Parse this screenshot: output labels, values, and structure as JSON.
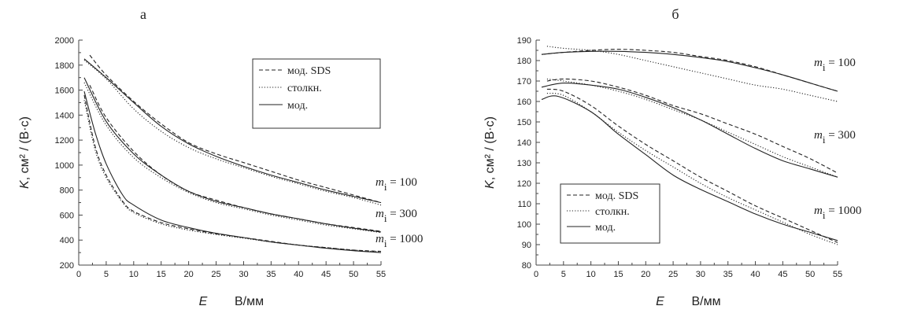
{
  "chart_data": [
    {
      "type": "line",
      "panel_label": "а",
      "xlabel_var": "E",
      "xlabel_unit": "В/мм",
      "ylabel_var": "K",
      "ylabel_unit": "см² / (В·с)",
      "xlim": [
        0,
        55
      ],
      "ylim": [
        200,
        2000
      ],
      "xticks": [
        0,
        5,
        10,
        15,
        20,
        25,
        30,
        35,
        40,
        45,
        50,
        55
      ],
      "yticks": [
        200,
        400,
        600,
        800,
        1000,
        1200,
        1400,
        1600,
        1800,
        2000
      ],
      "legend": [
        {
          "label": "мод. SDS",
          "style": "dashed"
        },
        {
          "label": "столкн.",
          "style": "dotted"
        },
        {
          "label": "мод.",
          "style": "solid"
        }
      ],
      "annotations": [
        {
          "var": "m",
          "sub": "i",
          "value": " = 100"
        },
        {
          "var": "m",
          "sub": "i",
          "value": " = 300"
        },
        {
          "var": "m",
          "sub": "i",
          "value": " = 1000"
        }
      ],
      "series": [
        {
          "name": "мод. SDS, mi = 100",
          "style": "dashed",
          "x": [
            2,
            5,
            10,
            15,
            20,
            25,
            30,
            35,
            40,
            45,
            50,
            55
          ],
          "y": [
            1880,
            1720,
            1510,
            1330,
            1180,
            1090,
            1020,
            950,
            880,
            820,
            760,
            700
          ]
        },
        {
          "name": "столкн., mi = 100",
          "style": "dotted",
          "x": [
            1,
            5,
            10,
            15,
            20,
            25,
            30,
            35,
            40,
            45,
            50,
            55
          ],
          "y": [
            1840,
            1690,
            1450,
            1270,
            1140,
            1050,
            980,
            910,
            850,
            790,
            740,
            680
          ]
        },
        {
          "name": "мод., mi = 100",
          "style": "solid",
          "x": [
            1,
            5,
            10,
            15,
            20,
            25,
            30,
            35,
            40,
            45,
            50,
            55
          ],
          "y": [
            1850,
            1700,
            1500,
            1310,
            1170,
            1070,
            990,
            920,
            860,
            800,
            750,
            700
          ]
        },
        {
          "name": "мод. SDS, mi = 300",
          "style": "dashed",
          "x": [
            2,
            5,
            10,
            15,
            20,
            25,
            30,
            35,
            40,
            45,
            50,
            55
          ],
          "y": [
            1640,
            1380,
            1110,
            920,
            790,
            720,
            660,
            610,
            570,
            530,
            500,
            470
          ]
        },
        {
          "name": "столкн., mi = 300",
          "style": "dotted",
          "x": [
            1,
            5,
            10,
            15,
            20,
            25,
            30,
            35,
            40,
            45,
            50,
            55
          ],
          "y": [
            1660,
            1320,
            1060,
            900,
            780,
            700,
            650,
            600,
            560,
            520,
            490,
            460
          ]
        },
        {
          "name": "мод., mi = 300",
          "style": "solid",
          "x": [
            1,
            5,
            10,
            15,
            20,
            25,
            30,
            35,
            40,
            45,
            50,
            55
          ],
          "y": [
            1700,
            1350,
            1090,
            920,
            790,
            710,
            660,
            610,
            570,
            530,
            495,
            465
          ]
        },
        {
          "name": "мод. SDS, mi = 1000",
          "style": "dashed",
          "x": [
            1,
            3,
            5,
            8,
            10,
            15,
            20,
            25,
            30,
            35,
            40,
            45,
            50,
            55
          ],
          "y": [
            1560,
            1150,
            920,
            710,
            630,
            540,
            490,
            450,
            420,
            390,
            360,
            340,
            320,
            310
          ]
        },
        {
          "name": "столкн., mi = 1000",
          "style": "dotted",
          "x": [
            1,
            3,
            5,
            8,
            10,
            15,
            20,
            25,
            30,
            35,
            40,
            45,
            50,
            55
          ],
          "y": [
            1520,
            1120,
            900,
            700,
            620,
            530,
            480,
            445,
            415,
            385,
            360,
            340,
            320,
            305
          ]
        },
        {
          "name": "мод., mi = 1000",
          "style": "solid",
          "x": [
            1,
            3,
            5,
            8,
            10,
            15,
            20,
            25,
            30,
            35,
            40,
            45,
            50,
            55
          ],
          "y": [
            1590,
            1260,
            1010,
            760,
            680,
            560,
            500,
            455,
            420,
            385,
            360,
            335,
            315,
            300
          ]
        }
      ]
    },
    {
      "type": "line",
      "panel_label": "б",
      "xlabel_var": "E",
      "xlabel_unit": "В/мм",
      "ylabel_var": "K",
      "ylabel_unit": "см² / (В·с)",
      "xlim": [
        0,
        55
      ],
      "ylim": [
        80,
        190
      ],
      "xticks": [
        0,
        5,
        10,
        15,
        20,
        25,
        30,
        35,
        40,
        45,
        50,
        55
      ],
      "yticks": [
        80,
        90,
        100,
        110,
        120,
        130,
        140,
        150,
        160,
        170,
        180,
        190
      ],
      "legend": [
        {
          "label": "мод. SDS",
          "style": "dashed"
        },
        {
          "label": "столкн.",
          "style": "dotted"
        },
        {
          "label": "мод.",
          "style": "solid"
        }
      ],
      "annotations": [
        {
          "var": "m",
          "sub": "i",
          "value": " = 100"
        },
        {
          "var": "m",
          "sub": "i",
          "value": " = 300"
        },
        {
          "var": "m",
          "sub": "i",
          "value": " = 1000"
        }
      ],
      "series": [
        {
          "name": "мод. SDS, mi = 100",
          "style": "dashed",
          "x": [
            1,
            5,
            10,
            15,
            20,
            25,
            30,
            35,
            40,
            45,
            50,
            55
          ],
          "y": [
            183,
            184,
            185,
            185.5,
            185,
            184,
            182,
            180,
            177,
            173,
            169,
            165
          ]
        },
        {
          "name": "столкн., mi = 100",
          "style": "dotted",
          "x": [
            2,
            5,
            10,
            15,
            20,
            25,
            30,
            35,
            40,
            45,
            50,
            55
          ],
          "y": [
            187,
            186,
            185,
            183,
            180,
            177,
            174,
            171,
            168,
            166,
            163,
            160
          ]
        },
        {
          "name": "мод., mi = 100",
          "style": "solid",
          "x": [
            1,
            5,
            10,
            15,
            20,
            25,
            30,
            35,
            40,
            45,
            50,
            55
          ],
          "y": [
            183,
            184,
            184.5,
            184.5,
            184,
            183,
            181.5,
            179.5,
            176.5,
            173,
            169,
            165
          ]
        },
        {
          "name": "мод. SDS, mi = 300",
          "style": "dashed",
          "x": [
            2,
            5,
            10,
            15,
            20,
            25,
            30,
            35,
            40,
            45,
            50,
            55
          ],
          "y": [
            170,
            171,
            170,
            167,
            163,
            158,
            154,
            149,
            144,
            138,
            132,
            125
          ]
        },
        {
          "name": "столкн., mi = 300",
          "style": "dotted",
          "x": [
            2,
            5,
            10,
            15,
            20,
            25,
            30,
            35,
            40,
            45,
            50,
            55
          ],
          "y": [
            171,
            170,
            168,
            165,
            161,
            156,
            151,
            145,
            139,
            133,
            128,
            123
          ]
        },
        {
          "name": "мод., mi = 300",
          "style": "solid",
          "x": [
            1,
            5,
            10,
            15,
            20,
            25,
            30,
            35,
            40,
            45,
            50,
            55
          ],
          "y": [
            167,
            169,
            168,
            166,
            162,
            157,
            151,
            144,
            137,
            131,
            127,
            123
          ]
        },
        {
          "name": "мод. SDS, mi = 1000",
          "style": "dashed",
          "x": [
            2,
            5,
            10,
            15,
            20,
            25,
            30,
            35,
            40,
            45,
            50,
            55
          ],
          "y": [
            166,
            165,
            158,
            148,
            139,
            131,
            123,
            116,
            109,
            103,
            97,
            91
          ]
        },
        {
          "name": "столкн., mi = 1000",
          "style": "dotted",
          "x": [
            2,
            5,
            10,
            15,
            20,
            25,
            30,
            35,
            40,
            45,
            50,
            55
          ],
          "y": [
            164,
            163,
            155,
            145,
            136,
            128,
            120,
            113,
            107,
            101,
            95,
            90
          ]
        },
        {
          "name": "мод., mi = 1000",
          "style": "solid",
          "x": [
            1,
            4,
            10,
            15,
            20,
            25,
            30,
            35,
            40,
            45,
            50,
            55
          ],
          "y": [
            161,
            162.5,
            155,
            144,
            134,
            124,
            117,
            111,
            105,
            100,
            96,
            92
          ]
        }
      ]
    }
  ]
}
